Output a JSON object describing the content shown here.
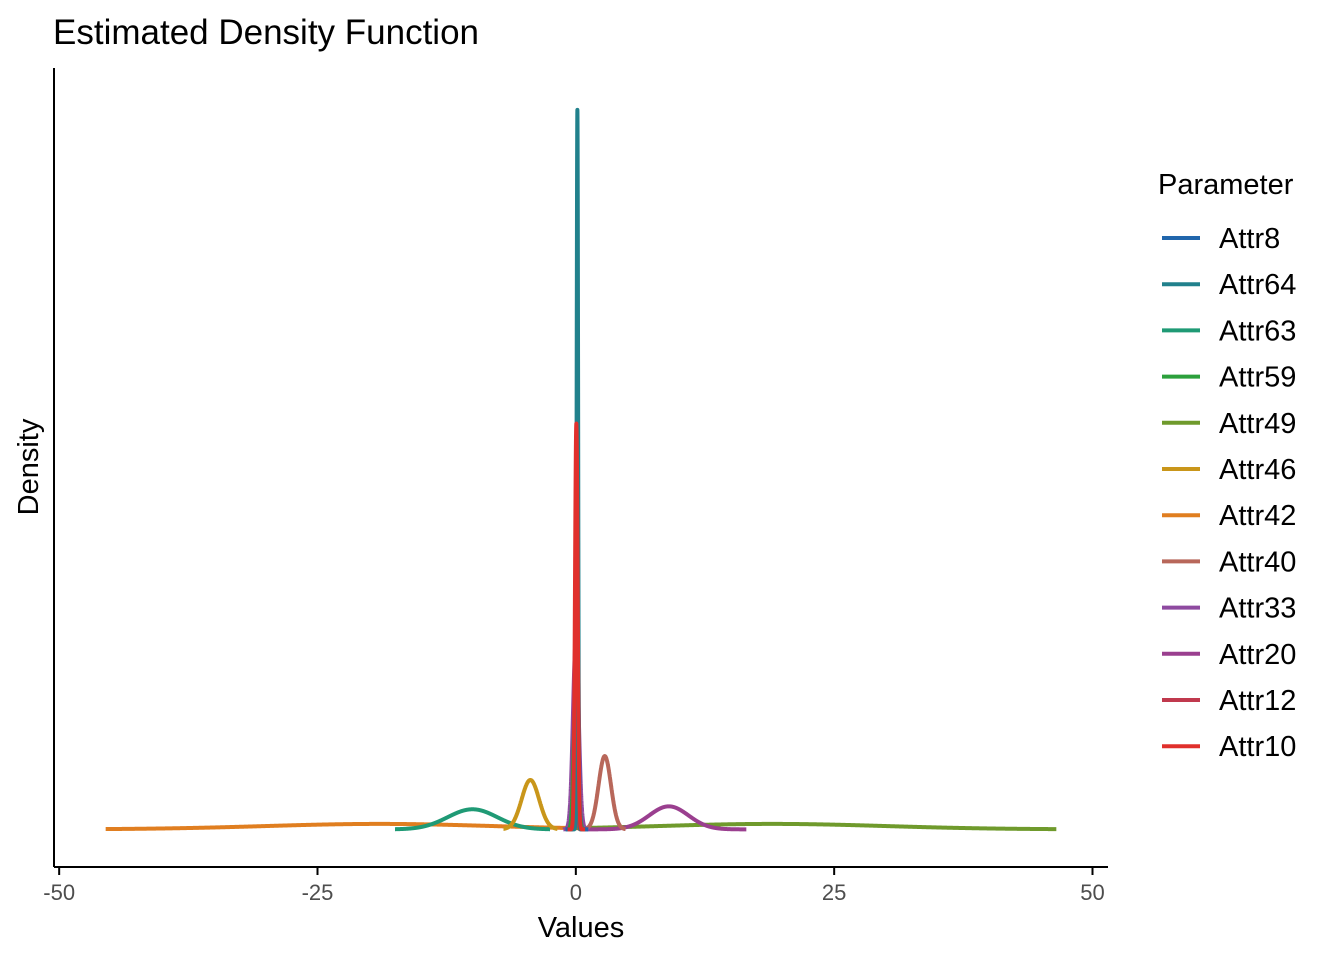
{
  "chart_data": {
    "type": "line",
    "title": "Estimated Density Function",
    "xlabel": "Values",
    "ylabel": "Density",
    "xlim": [
      -50.5,
      51.5
    ],
    "ylim": [
      -0.09,
      1.82
    ],
    "x_ticks": [
      -50,
      -25,
      0,
      25,
      50
    ],
    "x_tick_labels": [
      "-50",
      "-25",
      "0",
      "25",
      "50"
    ],
    "grid": false,
    "legend": {
      "title": "Parameter",
      "position": "right"
    },
    "series": [
      {
        "name": "Attr8",
        "color": "#2166ac",
        "curve": {
          "components": [
            {
              "mu": 0.1,
              "sigma": 0.12,
              "amp": 0.85
            }
          ],
          "range": [
            -1.0,
            1.2
          ]
        }
      },
      {
        "name": "Attr64",
        "color": "#21818c",
        "curve": {
          "components": [
            {
              "mu": 0.15,
              "sigma": 0.07,
              "amp": 1.72
            }
          ],
          "range": [
            -0.6,
            0.9
          ]
        }
      },
      {
        "name": "Attr63",
        "color": "#1f9a75",
        "curve": {
          "components": [
            {
              "mu": -10.0,
              "sigma": 2.4,
              "amp": 0.048
            }
          ],
          "range": [
            -17.5,
            -2.5
          ]
        }
      },
      {
        "name": "Attr59",
        "color": "#2ca03c",
        "curve": {
          "components": [
            {
              "mu": 0.0,
              "sigma": 0.2,
              "amp": 0.35
            }
          ],
          "range": [
            -1.0,
            1.0
          ]
        }
      },
      {
        "name": "Attr49",
        "color": "#6f9a2c",
        "curve": {
          "components": [
            {
              "mu": 19.0,
              "sigma": 11.0,
              "amp": 0.013
            }
          ],
          "range": [
            -1.0,
            46.5
          ]
        }
      },
      {
        "name": "Attr46",
        "color": "#c9961a",
        "curve": {
          "components": [
            {
              "mu": -4.4,
              "sigma": 0.85,
              "amp": 0.118
            }
          ],
          "range": [
            -7.0,
            -1.8
          ]
        }
      },
      {
        "name": "Attr42",
        "color": "#e07e20",
        "curve": {
          "components": [
            {
              "mu": -19.0,
              "sigma": 11.0,
              "amp": 0.013
            }
          ],
          "range": [
            -45.5,
            1.0
          ]
        }
      },
      {
        "name": "Attr40",
        "color": "#b8675a",
        "curve": {
          "components": [
            {
              "mu": 2.8,
              "sigma": 0.6,
              "amp": 0.175
            }
          ],
          "range": [
            0.8,
            4.8
          ]
        }
      },
      {
        "name": "Attr33",
        "color": "#8e4aa0",
        "curve": {
          "components": [
            {
              "mu": 0.0,
              "sigma": 0.28,
              "amp": 0.45
            }
          ],
          "range": [
            -1.2,
            1.2
          ]
        }
      },
      {
        "name": "Attr20",
        "color": "#9a3f8f",
        "curve": {
          "components": [
            {
              "mu": 9.0,
              "sigma": 1.9,
              "amp": 0.055
            }
          ],
          "range": [
            0.8,
            16.5
          ]
        }
      },
      {
        "name": "Attr12",
        "color": "#c0394d",
        "curve": {
          "components": [
            {
              "mu": 0.05,
              "sigma": 0.09,
              "amp": 0.55
            }
          ],
          "range": [
            -0.6,
            0.8
          ]
        }
      },
      {
        "name": "Attr10",
        "color": "#e0302c",
        "curve": {
          "components": [
            {
              "mu": 0.05,
              "sigma": 0.13,
              "amp": 0.97
            }
          ],
          "range": [
            -0.8,
            0.9
          ]
        }
      }
    ]
  }
}
